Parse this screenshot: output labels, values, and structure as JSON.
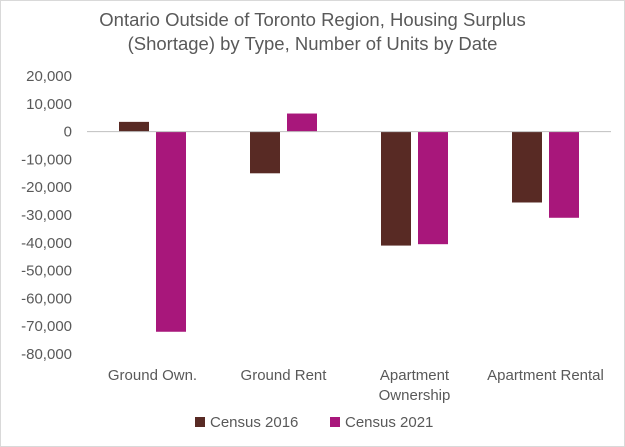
{
  "chart_data": {
    "type": "bar",
    "title_lines": [
      "Ontario Outside of Toronto Region, Housing Surplus",
      "(Shortage) by Type, Number of Units by Date"
    ],
    "categories": [
      [
        "Ground Own."
      ],
      [
        "Ground Rent"
      ],
      [
        "Apartment",
        "Ownership"
      ],
      [
        "Apartment Rental"
      ]
    ],
    "series": [
      {
        "name": "Census 2016",
        "color": "#582a24",
        "values": [
          3500,
          -15000,
          -41000,
          -25500
        ]
      },
      {
        "name": "Census 2021",
        "color": "#a8177b",
        "values": [
          -72000,
          6500,
          -40500,
          -31000
        ]
      }
    ],
    "y_ticks": [
      {
        "value": 20000,
        "label": "20,000"
      },
      {
        "value": 10000,
        "label": "10,000"
      },
      {
        "value": 0,
        "label": "0"
      },
      {
        "value": -10000,
        "label": "-10,000"
      },
      {
        "value": -20000,
        "label": "-20,000"
      },
      {
        "value": -30000,
        "label": "-30,000"
      },
      {
        "value": -40000,
        "label": "-40,000"
      },
      {
        "value": -50000,
        "label": "-50,000"
      },
      {
        "value": -60000,
        "label": "-60,000"
      },
      {
        "value": -70000,
        "label": "-70,000"
      },
      {
        "value": -80000,
        "label": "-80,000"
      }
    ],
    "ylim": [
      -80000,
      20000
    ],
    "grid": false,
    "legend_position": "bottom",
    "xlabel": "",
    "ylabel": ""
  }
}
